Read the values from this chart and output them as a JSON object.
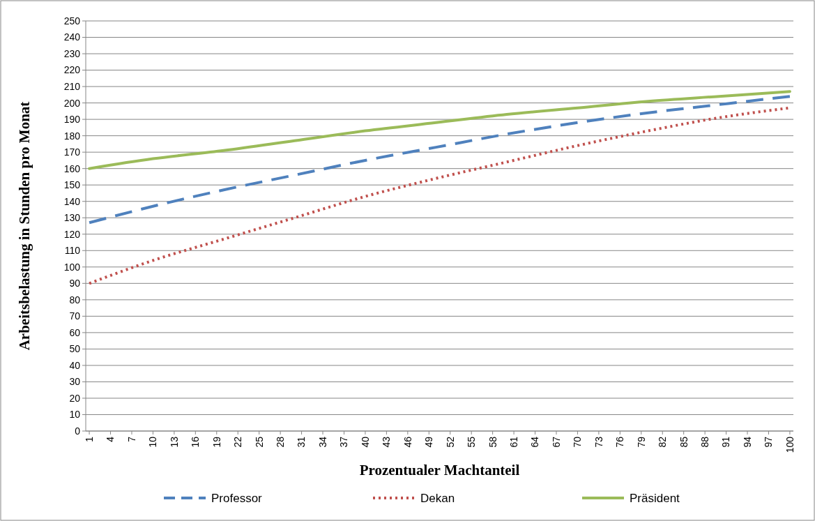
{
  "chart_data": {
    "type": "line",
    "xlabel": "Prozentualer Machtanteil",
    "ylabel": "Arbeitsbelastung in Stunden pro Monat",
    "x": [
      1,
      10,
      20,
      30,
      40,
      50,
      60,
      70,
      80,
      90,
      100
    ],
    "series": [
      {
        "name": "Professor",
        "color": "#4f81bd",
        "line_style": "dashed",
        "values": [
          127,
          137,
          147,
          156,
          165,
          173,
          181,
          188,
          194,
          199,
          204
        ]
      },
      {
        "name": "Dekan",
        "color": "#c0504d",
        "line_style": "dotted",
        "values": [
          90,
          104,
          117,
          130,
          143,
          154,
          164,
          174,
          183,
          191,
          197
        ]
      },
      {
        "name": "Präsident",
        "color": "#9bbb59",
        "line_style": "solid",
        "values": [
          160,
          166,
          171,
          177,
          183,
          188,
          193,
          197,
          201,
          204,
          207
        ]
      }
    ],
    "xlim": [
      0.5,
      100.5
    ],
    "xticks": [
      1,
      4,
      7,
      10,
      13,
      16,
      19,
      22,
      25,
      28,
      31,
      34,
      37,
      40,
      43,
      46,
      49,
      52,
      55,
      58,
      61,
      64,
      67,
      70,
      73,
      76,
      79,
      82,
      85,
      88,
      91,
      94,
      97,
      100
    ],
    "ylim": [
      0,
      250
    ],
    "yticks": [
      0,
      10,
      20,
      30,
      40,
      50,
      60,
      70,
      80,
      90,
      100,
      110,
      120,
      130,
      140,
      150,
      160,
      170,
      180,
      190,
      200,
      210,
      220,
      230,
      240,
      250
    ],
    "grid": "y",
    "legend": "bottom"
  }
}
